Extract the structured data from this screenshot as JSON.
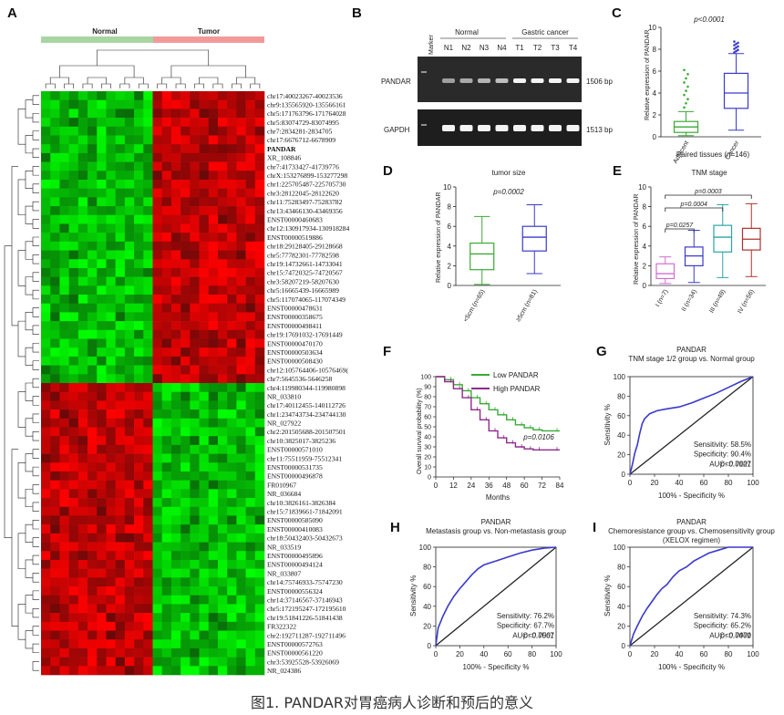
{
  "caption": "图1. PANDAR对胃癌病人诊断和预后的意义",
  "panels": {
    "A": {
      "label": "A",
      "groups": [
        "Normal",
        "Tumor"
      ],
      "genes": [
        "chr17:40023267-40023536",
        "chr9:135565920-135566161",
        "chr5:171763796-171764028",
        "chr5:83074729-83074995",
        "chr7:2834281-2834705",
        "chr17:6676712-6678909",
        "PANDAR",
        "XR_108846",
        "chr7:41733427-41739776",
        "chrX:153276899-153277298",
        "chr1:225705487-225705730",
        "chr3:28122045-28122620",
        "chr11:75283497-75283782",
        "chr13:43466130-43469356",
        "ENST00000460683",
        "chr12:130917934-130918284",
        "ENST00000519886",
        "chr18:29128405-29128668",
        "chr5:77782301-77782598",
        "chr19:14732661-14733041",
        "chr15:74720325-74720567",
        "chr3:58207219-58207630",
        "chr5:16665439-16665989",
        "chr5:117074065-117074349",
        "ENST00000478631",
        "ENST00000358675",
        "ENST00000498411",
        "chr19:17691032-17691449",
        "ENST00000470170",
        "ENST00000503634",
        "ENST00000508430",
        "chr12:105764406-10576469(",
        "chr7:5645536-5646258",
        "chr4:119980344-119980898",
        "NR_033810",
        "chr17:40112455-140112726",
        "chr1:234743734-234744130",
        "NR_027922",
        "chr2:201505688-201507501",
        "chr10:3825017-3825236",
        "ENST00000571010",
        "chr11:75511959-75512341",
        "ENST00000531735",
        "ENST00000496878",
        "FR010967",
        "NR_036684",
        "chr10:3826161-3826384",
        "chr15:71839661-71842091",
        "ENST00000585090",
        "ENST00000410083",
        "chr18:50432403-50432673",
        "NR_033519",
        "ENST00000495896",
        "ENST00000494124",
        "NR_033807",
        "chr14:75746933-75747230",
        "ENST00000556324",
        "chr14:37146567-37146943",
        "chr5:172195247-172195610",
        "chr19:51841226-51841438",
        "FR322322",
        "chr2:192711287-192711496",
        "ENST00000572763",
        "ENST00000561220",
        "chr3:53925528-53926069",
        "NR_024386"
      ],
      "highlight_gene": "PANDAR",
      "colors": {
        "normal_bar": "#a8d5a2",
        "tumor_bar": "#f29a9a",
        "highlight": "#e23a3a"
      }
    },
    "B": {
      "label": "B",
      "marker_label": "Marker",
      "normal_group": "Normal",
      "cancer_group": "Gastric cancer",
      "lanes": [
        "N1",
        "N2",
        "N3",
        "N4",
        "T1",
        "T2",
        "T3",
        "T4"
      ],
      "rows": [
        {
          "name": "PANDAR",
          "size": "1506 bp"
        },
        {
          "name": "GAPDH",
          "size": "1513 bp"
        }
      ]
    },
    "C": {
      "label": "C",
      "pvalue": "p<0.0001",
      "ylabel": "Relative expression of PANDAR",
      "xlabel": "Paired tissues (n=146)",
      "groups": [
        {
          "name": "Adjacent",
          "min": 0.1,
          "q1": 0.4,
          "median": 0.9,
          "q3": 1.4,
          "max": 2.3,
          "color": "#3aaa35"
        },
        {
          "name": "Cancer",
          "min": 0.6,
          "q1": 2.6,
          "median": 4.0,
          "q3": 5.8,
          "max": 7.6,
          "color": "#3a3acc"
        }
      ],
      "yticks": [
        0,
        2,
        4,
        6,
        8,
        10
      ],
      "ylim": [
        0,
        10
      ]
    },
    "D": {
      "label": "D",
      "title": "tumor size",
      "pvalue": "p=0.0002",
      "ylabel": "Relative expression of PANDAR",
      "groups": [
        {
          "name": "<5cm (n=65)",
          "min": 0.1,
          "q1": 1.6,
          "median": 3.2,
          "q3": 4.3,
          "max": 7.0,
          "color": "#3aaa35"
        },
        {
          "name": "≥5cm (n=81)",
          "min": 1.2,
          "q1": 3.5,
          "median": 4.9,
          "q3": 6.0,
          "max": 8.2,
          "color": "#3a3acc"
        }
      ],
      "yticks": [
        0,
        2,
        4,
        6,
        8,
        10
      ],
      "ylim": [
        0,
        10
      ]
    },
    "E": {
      "label": "E",
      "title": "TNM stage",
      "ylabel": "Relative expression of PANDAR",
      "comparisons": [
        "p=0.0257",
        "p=0.0004",
        "p=0.0003"
      ],
      "groups": [
        {
          "name": "I (n=7)",
          "min": 0.2,
          "q1": 0.7,
          "median": 1.2,
          "q3": 2.2,
          "max": 2.9,
          "color": "#d06fd0"
        },
        {
          "name": "II (n=34)",
          "min": 0.3,
          "q1": 2.0,
          "median": 3.0,
          "q3": 3.9,
          "max": 5.6,
          "color": "#3a3acc"
        },
        {
          "name": "III (n=49)",
          "min": 0.8,
          "q1": 3.4,
          "median": 4.9,
          "q3": 6.1,
          "max": 8.2,
          "color": "#2aa5a5"
        },
        {
          "name": "IV (n=56)",
          "min": 0.9,
          "q1": 3.6,
          "median": 4.7,
          "q3": 5.8,
          "max": 8.3,
          "color": "#b03030"
        }
      ],
      "yticks": [
        0,
        2,
        4,
        6,
        8,
        10
      ],
      "ylim": [
        0,
        10
      ]
    },
    "F": {
      "label": "F",
      "ylabel": "Overall survival probability (%)",
      "xlabel": "Months",
      "pvalue": "p=0.0106",
      "xticks": [
        0,
        12,
        24,
        36,
        48,
        60,
        72,
        84
      ],
      "yticks": [
        0,
        10,
        20,
        30,
        40,
        50,
        60,
        70,
        80,
        90,
        100
      ],
      "series": [
        {
          "name": "Low PANDAR",
          "color": "#3aaa35",
          "x": [
            0,
            6,
            12,
            18,
            24,
            30,
            36,
            42,
            48,
            54,
            60,
            66,
            72,
            84
          ],
          "y": [
            100,
            97,
            92,
            86,
            79,
            73,
            67,
            62,
            57,
            52,
            49,
            47,
            46,
            46
          ]
        },
        {
          "name": "High PANDAR",
          "color": "#8e2a8e",
          "x": [
            0,
            6,
            12,
            18,
            24,
            30,
            36,
            42,
            48,
            54,
            60,
            66,
            72,
            84
          ],
          "y": [
            100,
            95,
            88,
            79,
            67,
            57,
            46,
            39,
            34,
            30,
            28,
            27,
            27,
            27
          ]
        }
      ]
    },
    "G": {
      "label": "G",
      "title1": "PANDAR",
      "title2": "TNM stage 1/2 group vs. Normal group",
      "stats": [
        "Sensitivity: 58.5%",
        "Specificity: 90.4%",
        "AUC: 0.7127"
      ],
      "pvalue": "p<0.0001",
      "xlabel": "100% - Specificity %",
      "ylabel": "Sensitivity %",
      "roc": [
        [
          0,
          0
        ],
        [
          2,
          10
        ],
        [
          4,
          22
        ],
        [
          6,
          30
        ],
        [
          8,
          42
        ],
        [
          10,
          52
        ],
        [
          12,
          57
        ],
        [
          16,
          62
        ],
        [
          22,
          65
        ],
        [
          30,
          67
        ],
        [
          40,
          69
        ],
        [
          50,
          73
        ],
        [
          60,
          78
        ],
        [
          70,
          83
        ],
        [
          80,
          89
        ],
        [
          90,
          95
        ],
        [
          100,
          100
        ]
      ]
    },
    "H": {
      "label": "H",
      "title1": "PANDAR",
      "title2": "Metastasis group vs. Non-metastasis group",
      "stats": [
        "Sensitivity: 76.2%",
        "Specificity: 67.7%",
        "AUC: 0.7567"
      ],
      "pvalue": "p<0.0001",
      "xlabel": "100% - Specificity %",
      "ylabel": "Sensitivity %",
      "roc": [
        [
          0,
          0
        ],
        [
          2,
          18
        ],
        [
          6,
          30
        ],
        [
          10,
          40
        ],
        [
          15,
          50
        ],
        [
          20,
          58
        ],
        [
          25,
          65
        ],
        [
          30,
          72
        ],
        [
          35,
          78
        ],
        [
          40,
          82
        ],
        [
          50,
          86
        ],
        [
          60,
          90
        ],
        [
          70,
          94
        ],
        [
          80,
          97
        ],
        [
          90,
          99
        ],
        [
          100,
          100
        ]
      ]
    },
    "I": {
      "label": "I",
      "title1": "PANDAR",
      "title2": "Chemoresistance group vs. Chemosensitivity group",
      "title3": "(XELOX regimen)",
      "stats": [
        "Sensitivity: 74.3%",
        "Specificity: 65.2%",
        "AUC: 0.7470"
      ],
      "pvalue": "p<0.0001",
      "xlabel": "100% - Specificity %",
      "ylabel": "Sensitivity %",
      "roc": [
        [
          0,
          0
        ],
        [
          3,
          12
        ],
        [
          6,
          20
        ],
        [
          10,
          30
        ],
        [
          14,
          38
        ],
        [
          18,
          45
        ],
        [
          22,
          52
        ],
        [
          26,
          58
        ],
        [
          30,
          62
        ],
        [
          35,
          70
        ],
        [
          40,
          76
        ],
        [
          46,
          80
        ],
        [
          52,
          86
        ],
        [
          58,
          90
        ],
        [
          64,
          94
        ],
        [
          72,
          97
        ],
        [
          80,
          100
        ],
        [
          100,
          100
        ]
      ]
    }
  }
}
